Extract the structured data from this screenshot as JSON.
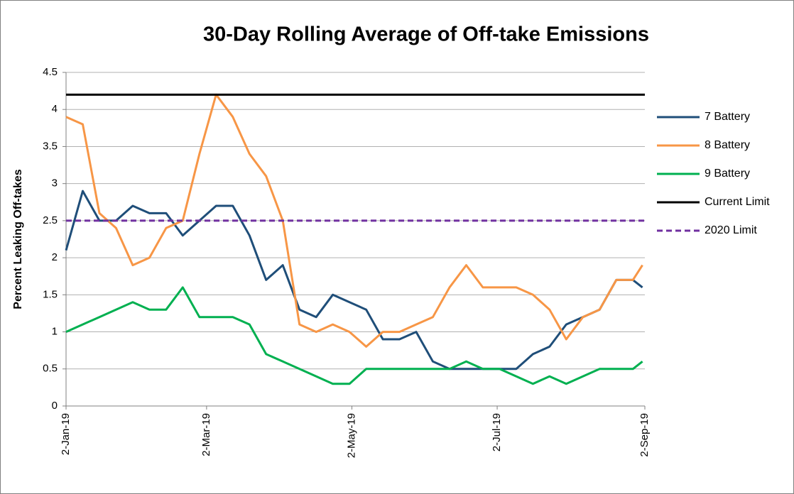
{
  "chart_data": {
    "type": "line",
    "title": "30-Day Rolling Average of Off-take Emissions",
    "y_label": "Percent Leaking Off-takes",
    "x": [
      "2019-01-02",
      "2019-01-09",
      "2019-01-16",
      "2019-01-23",
      "2019-01-30",
      "2019-02-06",
      "2019-02-13",
      "2019-02-20",
      "2019-02-27",
      "2019-03-06",
      "2019-03-13",
      "2019-03-20",
      "2019-03-27",
      "2019-04-03",
      "2019-04-10",
      "2019-04-17",
      "2019-04-24",
      "2019-05-01",
      "2019-05-08",
      "2019-05-15",
      "2019-05-22",
      "2019-05-29",
      "2019-06-05",
      "2019-06-12",
      "2019-06-19",
      "2019-06-26",
      "2019-07-03",
      "2019-07-10",
      "2019-07-17",
      "2019-07-24",
      "2019-07-31",
      "2019-08-07",
      "2019-08-14",
      "2019-08-21",
      "2019-08-28",
      "2019-09-01"
    ],
    "series": [
      {
        "name": "7 Battery",
        "color": "#1f4e79",
        "values": [
          2.1,
          2.9,
          2.5,
          2.5,
          2.7,
          2.6,
          2.6,
          2.3,
          2.5,
          2.7,
          2.7,
          2.3,
          1.7,
          1.9,
          1.3,
          1.2,
          1.5,
          1.4,
          1.3,
          0.9,
          0.9,
          1.0,
          0.6,
          0.5,
          0.5,
          0.5,
          0.5,
          0.5,
          0.7,
          0.8,
          1.1,
          1.2,
          1.3,
          1.7,
          1.7,
          1.6
        ]
      },
      {
        "name": "8 Battery",
        "color": "#f79646",
        "values": [
          3.9,
          3.8,
          2.6,
          2.4,
          1.9,
          2.0,
          2.4,
          2.5,
          3.4,
          4.2,
          3.9,
          3.4,
          3.1,
          2.5,
          1.1,
          1.0,
          1.1,
          1.0,
          0.8,
          1.0,
          1.0,
          1.1,
          1.2,
          1.6,
          1.9,
          1.6,
          1.6,
          1.6,
          1.5,
          1.3,
          0.9,
          1.2,
          1.3,
          1.7,
          1.7,
          1.9
        ]
      },
      {
        "name": "9 Battery",
        "color": "#00b050",
        "values": [
          1.0,
          1.1,
          1.2,
          1.3,
          1.4,
          1.3,
          1.3,
          1.6,
          1.2,
          1.2,
          1.2,
          1.1,
          0.7,
          0.6,
          0.5,
          0.4,
          0.3,
          0.3,
          0.5,
          0.5,
          0.5,
          0.5,
          0.5,
          0.5,
          0.6,
          0.5,
          0.5,
          0.4,
          0.3,
          0.4,
          0.3,
          0.4,
          0.5,
          0.5,
          0.5,
          0.6
        ]
      }
    ],
    "reference_lines": [
      {
        "name": "Current Limit",
        "value": 4.2,
        "color": "#000000",
        "dashed": false
      },
      {
        "name": "2020 Limit",
        "value": 2.5,
        "color": "#7030a0",
        "dashed": true
      }
    ],
    "xlim": [
      "2019-01-02",
      "2019-09-02"
    ],
    "xticks": [
      {
        "value": "2019-01-02",
        "label": "2-Jan-19"
      },
      {
        "value": "2019-03-02",
        "label": "2-Mar-19"
      },
      {
        "value": "2019-05-02",
        "label": "2-May-19"
      },
      {
        "value": "2019-07-02",
        "label": "2-Jul-19"
      },
      {
        "value": "2019-09-02",
        "label": "2-Sep-19"
      }
    ],
    "ylim": [
      0,
      4.5
    ],
    "yticks": [
      0,
      0.5,
      1,
      1.5,
      2,
      2.5,
      3,
      3.5,
      4,
      4.5
    ],
    "grid": true,
    "legend": "right"
  }
}
